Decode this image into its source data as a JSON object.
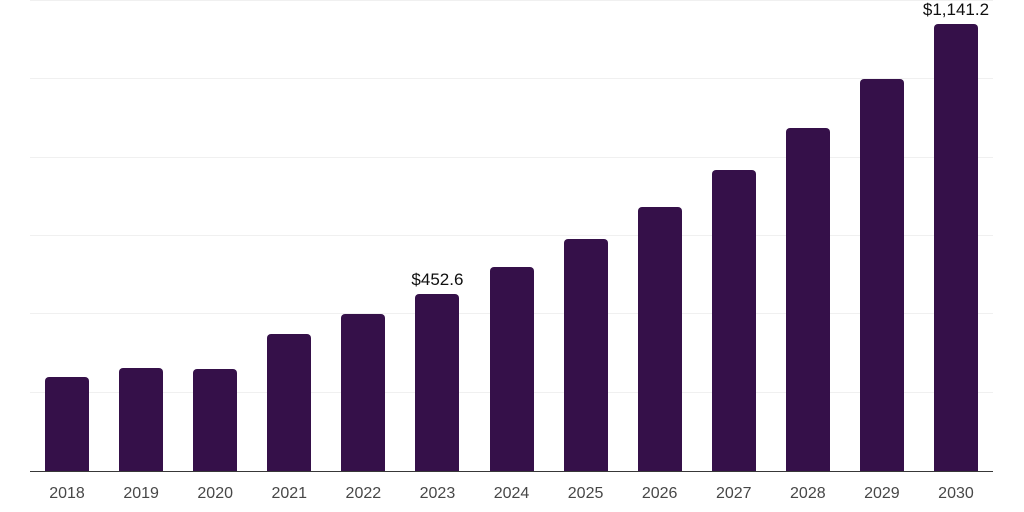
{
  "chart_data": {
    "type": "bar",
    "title": "",
    "categories": [
      "2018",
      "2019",
      "2020",
      "2021",
      "2022",
      "2023",
      "2024",
      "2025",
      "2026",
      "2027",
      "2028",
      "2029",
      "2030"
    ],
    "values": [
      239,
      262,
      261,
      349,
      400,
      452.6,
      520,
      592,
      674,
      769,
      875,
      1000,
      1141.2
    ],
    "value_labels": [
      "",
      "",
      "",
      "",
      "",
      "$452.6",
      "",
      "",
      "",
      "",
      "",
      "",
      "$1,141.2"
    ],
    "ylim": [
      0,
      1200
    ],
    "yticks": [
      200,
      400,
      600,
      800,
      1000,
      1200
    ],
    "grid": true,
    "legend": "none",
    "xlabel": "",
    "ylabel": "",
    "colors": {
      "bar": "#351049",
      "gridline": "#f0f0f0",
      "axis_line": "#383838",
      "tick_label": "#474747",
      "value_label": "#0f0f0f",
      "background": "#ffffff"
    }
  }
}
